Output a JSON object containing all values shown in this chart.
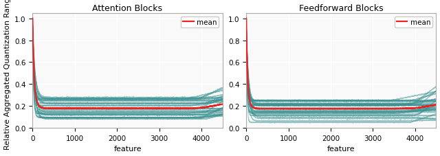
{
  "title_left": "Attention Blocks",
  "title_right": "Feedforward Blocks",
  "xlabel": "feature",
  "ylabel": "Relative Aggregated Quantization Range",
  "xlim": [
    0,
    4500
  ],
  "ylim": [
    0.0,
    1.05
  ],
  "yticks": [
    0.0,
    0.2,
    0.4,
    0.6,
    0.8,
    1.0
  ],
  "xticks": [
    0,
    1000,
    2000,
    3000,
    4000
  ],
  "n_features": 4500,
  "n_lines_attn": 32,
  "n_lines_ff": 32,
  "line_color": "#3a9090",
  "line_alpha": 0.5,
  "line_width": 0.6,
  "mean_color": "#ee2020",
  "mean_lw": 1.6,
  "legend_label": "mean",
  "bg_color": "#f9f9f9",
  "title_fontsize": 9,
  "axis_fontsize": 8,
  "tick_fontsize": 7.5
}
